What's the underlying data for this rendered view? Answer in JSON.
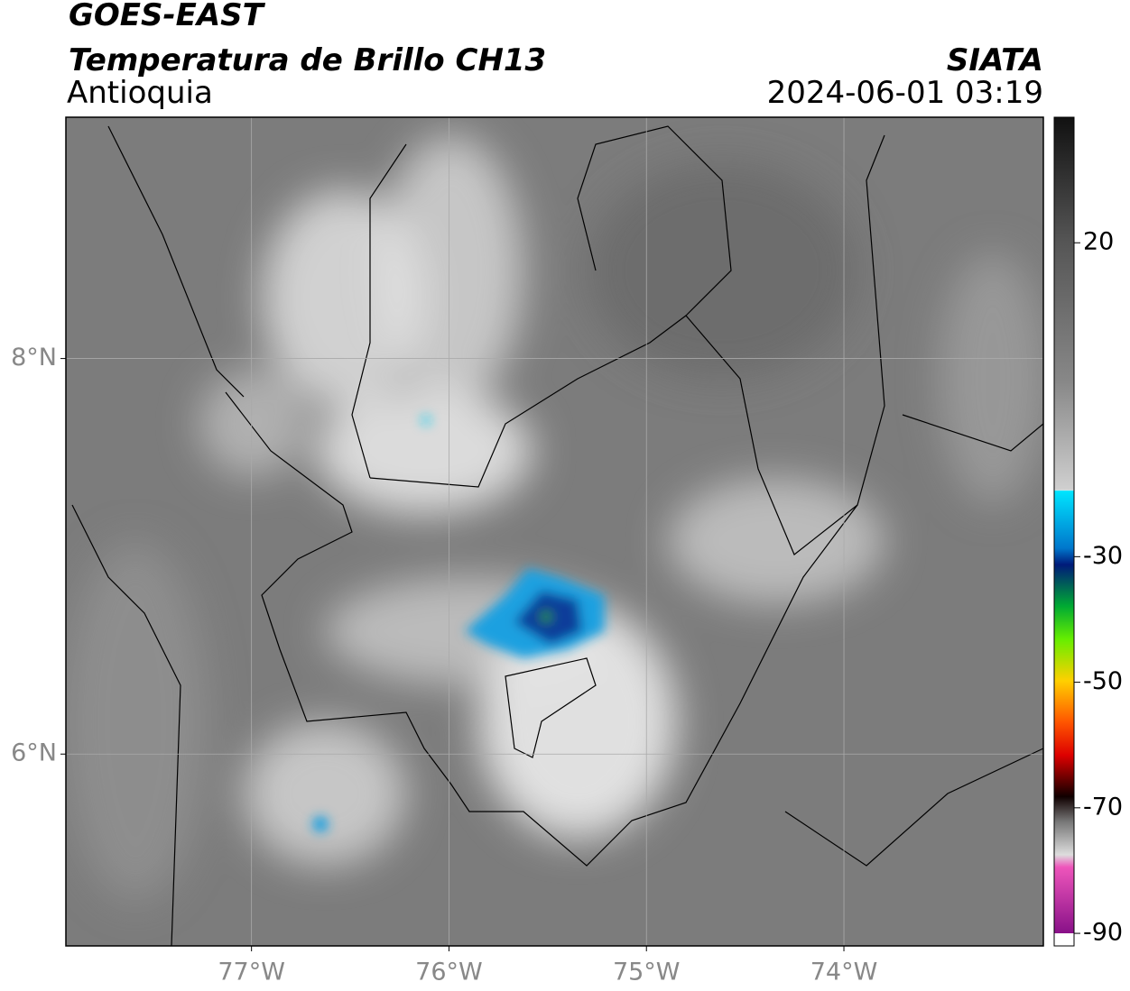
{
  "header": {
    "title": "GOES-EAST",
    "subtitle": "Temperatura de Brillo CH13",
    "region": "Antioquia",
    "source": "SIATA",
    "datetime": "2024-06-01 03:19"
  },
  "map": {
    "xlim": [
      -77.94,
      -72.99
    ],
    "ylim": [
      5.03,
      9.22
    ],
    "xticks": [
      {
        "value": -77,
        "label": "77°W"
      },
      {
        "value": -76,
        "label": "76°W"
      },
      {
        "value": -75,
        "label": "75°W"
      },
      {
        "value": -74,
        "label": "74°W"
      }
    ],
    "yticks": [
      {
        "value": 8,
        "label": "8°N"
      },
      {
        "value": 6,
        "label": "6°N"
      }
    ],
    "grid": true
  },
  "colorbar": {
    "lim": [
      -92,
      40
    ],
    "ticks": [
      20,
      -30,
      -50,
      -70,
      -90
    ]
  }
}
